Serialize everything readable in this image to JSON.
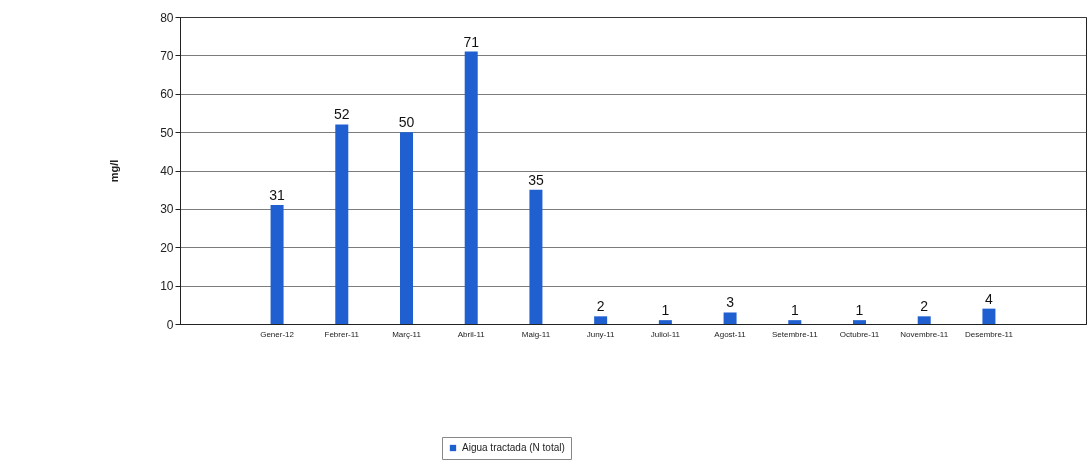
{
  "chart_data": {
    "type": "bar",
    "ylabel": "mg/l",
    "categories": [
      null,
      "Gener-12",
      "Febrer-11",
      "Març-11",
      "Abril-11",
      "Maig-11",
      "Juny-11",
      "Juliol-11",
      "Agost-11",
      "Setembre-11",
      "Octubre-11",
      "Novembre-11",
      "Desembre-11",
      null
    ],
    "series": [
      {
        "name": "Aigua tractada (N total)",
        "color": "#1f5fd0",
        "values": [
          null,
          31,
          52,
          50,
          71,
          35,
          2,
          1,
          3,
          1,
          1,
          2,
          4,
          null
        ]
      }
    ],
    "ylim": [
      0,
      80
    ],
    "yticks": [
      0,
      10,
      20,
      30,
      40,
      50,
      60,
      70,
      80
    ],
    "grid": "y",
    "legend": "bottom",
    "data_labels": true
  }
}
